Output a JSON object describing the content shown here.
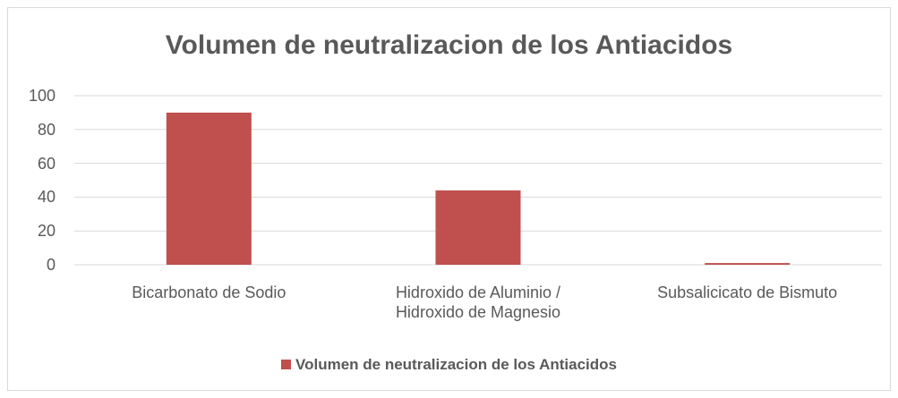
{
  "chart_data": {
    "type": "bar",
    "title": "Volumen de neutralizacion de los Antiacidos",
    "categories": [
      "Bicarbonato de Sodio",
      "Hidroxido de Aluminio / Hidroxido de Magnesio",
      "Subsalicicato de Bismuto"
    ],
    "series": [
      {
        "name": "Volumen de neutralizacion de los Antiacidos",
        "color": "#c0504d",
        "values": [
          90,
          44,
          1
        ]
      }
    ],
    "ylim": [
      0,
      100
    ],
    "yticks": [
      0,
      20,
      40,
      60,
      80,
      100
    ],
    "grid": true,
    "legend": "bottom"
  }
}
